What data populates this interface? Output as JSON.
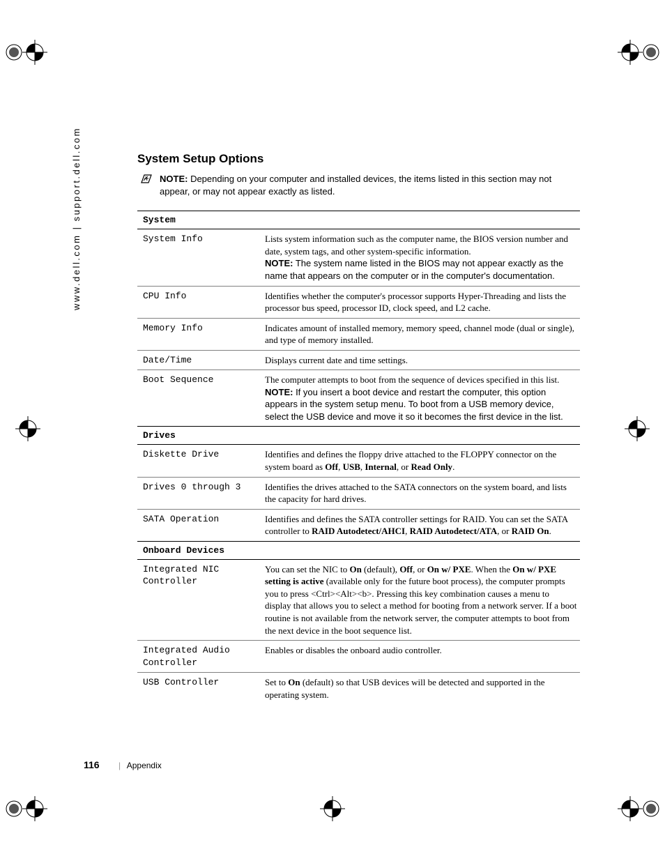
{
  "sidebar": "www.dell.com | support.dell.com",
  "heading": "System Setup Options",
  "note": {
    "label": "NOTE:",
    "text": " Depending on your computer and installed devices, the items listed in this section may not appear, or may not appear exactly as listed."
  },
  "sections": [
    {
      "name": "System",
      "rows": [
        {
          "label": "System Info",
          "desc": "Lists system information such as the computer name, the BIOS version number and date, system tags, and other system-specific information.",
          "note_label": "NOTE:",
          "note": " The system name listed in the BIOS may not appear exactly as the name that appears on the computer or in the computer's documentation."
        },
        {
          "label": "CPU Info",
          "desc": "Identifies whether the computer's processor supports Hyper-Threading and lists the processor bus speed, processor ID, clock speed, and L2 cache."
        },
        {
          "label": "Memory Info",
          "desc": "Indicates amount of installed memory, memory speed, channel mode (dual or single), and type of memory installed."
        },
        {
          "label": "Date/Time",
          "desc": "Displays current date and time settings."
        },
        {
          "label": "Boot Sequence",
          "desc": "The computer attempts to boot from the sequence of devices specified in this list.",
          "note_label": "NOTE:",
          "note": " If you insert a boot device and restart the computer, this option appears in the system setup menu. To boot from a USB memory device, select the USB device and move it so it becomes the first device in the list."
        }
      ]
    },
    {
      "name": "Drives",
      "rows": [
        {
          "label": "Diskette Drive",
          "desc_html": "Identifies and defines the floppy drive attached to the FLOPPY connector on the system board as <span class=\"b\">Off</span>, <span class=\"b\">USB</span>, <span class=\"b\">Internal</span>, or <span class=\"b\">Read Only</span>."
        },
        {
          "label": "Drives 0 through 3",
          "desc": "Identifies the drives attached to the SATA connectors on the system board, and lists the capacity for hard drives."
        },
        {
          "label": "SATA Operation",
          "desc_html": "Identifies and defines the SATA controller settings for RAID. You can set the SATA controller to <span class=\"b\">RAID Autodetect/AHCI</span>, <span class=\"b\">RAID Autodetect/ATA</span>, or <span class=\"b\">RAID On</span>."
        }
      ]
    },
    {
      "name": "Onboard Devices",
      "rows": [
        {
          "label": "Integrated NIC Controller",
          "desc_html": "You can set the NIC to <span class=\"b\">On</span> (default), <span class=\"b\">Off</span>, or <span class=\"b\">On w/ PXE</span>. When the <span class=\"b\">On w/ PXE setting is active</span> (available only for the future boot process), the computer prompts you to press &lt;Ctrl&gt;&lt;Alt&gt;&lt;b&gt;. Pressing this key combination causes a menu to display that allows you to select a method for booting from a network server. If a boot routine is not available from the network server, the computer attempts to boot from the next device in the boot sequence list."
        },
        {
          "label": "Integrated Audio Controller",
          "desc": "Enables or disables the onboard audio controller."
        },
        {
          "label": "USB Controller",
          "desc_html": "Set to <span class=\"b\">On</span> (default) so that USB devices will be detected and supported in the operating system."
        }
      ]
    }
  ],
  "footer": {
    "page": "116",
    "section": "Appendix"
  }
}
